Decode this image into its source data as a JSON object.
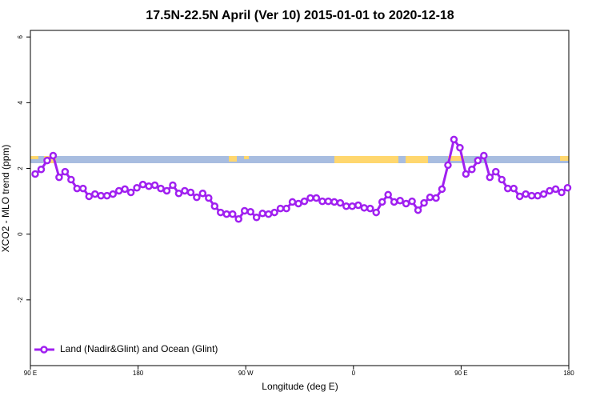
{
  "chart_data": {
    "type": "line",
    "title": "17.5N-22.5N April (Ver 10)   2015-01-01 to 2020-12-18",
    "x_label": "Longitude (deg E)",
    "y_label": "XCO2 - MLO trend (ppm)",
    "x": [
      94,
      99,
      104,
      109,
      114,
      119,
      124,
      129,
      134,
      139,
      144,
      149,
      154,
      159,
      164,
      169,
      174,
      179,
      184,
      189,
      194,
      199,
      204,
      209,
      214,
      219,
      224,
      229,
      234,
      239,
      244,
      249,
      254,
      259,
      264,
      269,
      274,
      279,
      284,
      289,
      294,
      299,
      304,
      309,
      314,
      319,
      324,
      329,
      334,
      339,
      344,
      349,
      354,
      359,
      364,
      369,
      374,
      379,
      384,
      389,
      394,
      399,
      404,
      409,
      414,
      419,
      424,
      429,
      434,
      439,
      444,
      449,
      454,
      459,
      464,
      469,
      474,
      479,
      484,
      489,
      494,
      499,
      504,
      509,
      514,
      519,
      524,
      529,
      534,
      539
    ],
    "series": [
      {
        "name": "Land (Nadir&Glint) and Ocean (Glint)",
        "color": "#a020f0",
        "values": [
          1.83,
          1.97,
          2.24,
          2.39,
          1.73,
          1.9,
          1.66,
          1.39,
          1.39,
          1.15,
          1.22,
          1.17,
          1.17,
          1.22,
          1.32,
          1.37,
          1.27,
          1.41,
          1.51,
          1.46,
          1.49,
          1.39,
          1.32,
          1.49,
          1.24,
          1.32,
          1.27,
          1.12,
          1.24,
          1.1,
          0.85,
          0.66,
          0.61,
          0.61,
          0.46,
          0.71,
          0.68,
          0.51,
          0.63,
          0.61,
          0.66,
          0.78,
          0.78,
          0.98,
          0.93,
          1.0,
          1.1,
          1.1,
          1.0,
          1.0,
          0.98,
          0.95,
          0.85,
          0.85,
          0.88,
          0.8,
          0.78,
          0.66,
          0.98,
          1.2,
          0.98,
          1.02,
          0.93,
          1.0,
          0.73,
          0.95,
          1.12,
          1.1,
          1.37,
          2.1,
          2.88,
          2.63,
          1.83,
          1.97,
          2.24,
          2.39,
          1.73,
          1.9,
          1.66,
          1.39,
          1.39,
          1.15,
          1.22,
          1.17,
          1.17,
          1.22,
          1.32,
          1.37,
          1.27,
          1.41
        ]
      }
    ],
    "xlim": [
      90,
      540
    ],
    "xticks": [
      {
        "value": 90,
        "label": "90 E"
      },
      180,
      {
        "value": 270,
        "label": "90 W"
      },
      {
        "value": 360,
        "label": "0"
      },
      {
        "value": 450,
        "label": "90 E"
      },
      {
        "value": 540,
        "label": "180"
      }
    ],
    "ylim": [
      -4,
      6.2
    ],
    "yticks": [
      -2,
      0,
      2,
      4,
      6
    ],
    "legend": "bottom-left"
  }
}
